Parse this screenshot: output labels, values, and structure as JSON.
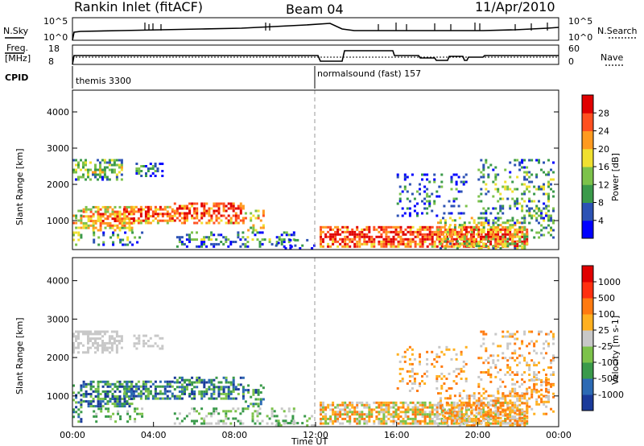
{
  "header": {
    "title": "Rankin Inlet (fitACF)",
    "beam": "Beam 04",
    "date": "11/Apr/2010"
  },
  "params": {
    "nsky_label": "N.Sky",
    "nsky_ticks": [
      "10^5",
      "10^0"
    ],
    "nsearch_label": "N.Search",
    "nsearch_ticks": [
      "10^5",
      "10^0"
    ],
    "freq_label": "Freq.",
    "freq_unit": "[MHz]",
    "freq_ticks": [
      "18",
      "8"
    ],
    "nave_label": "Nave",
    "nave_ticks": [
      "60",
      "0"
    ],
    "cpid_label": "CPID",
    "cpid_segments": [
      {
        "label": "themis 3300",
        "start_hour": 0
      },
      {
        "label": "normalsound (fast) 157",
        "start_hour": 12
      }
    ]
  },
  "chart_data": [
    {
      "type": "heatmap",
      "name": "power",
      "xlabel": "",
      "ylabel": "Slant Range [km]",
      "xlim": [
        0,
        24
      ],
      "ylim": [
        200,
        4600
      ],
      "yticks": [
        "1000",
        "2000",
        "3000",
        "4000"
      ],
      "colorbar": {
        "label": "Power [dB]",
        "ticks": [
          "28",
          "24",
          "20",
          "16",
          "12",
          "8",
          "4"
        ],
        "range": [
          0,
          30
        ],
        "colors": [
          "#0000ff",
          "#2c52b4",
          "#3a9a4a",
          "#7cc24a",
          "#f0e030",
          "#ff9a20",
          "#ff5020",
          "#e00000"
        ]
      }
    },
    {
      "type": "heatmap",
      "name": "velocity",
      "xlabel": "Time UT",
      "ylabel": "Slant Range [km]",
      "xlim": [
        0,
        24
      ],
      "ylim": [
        200,
        4600
      ],
      "xticks": [
        "00:00",
        "04:00",
        "08:00",
        "12:00",
        "16:00",
        "20:00",
        "00:00"
      ],
      "yticks": [
        "1000",
        "2000",
        "3000",
        "4000"
      ],
      "colorbar": {
        "label": "Velocity [m s-1]",
        "ticks": [
          "1000",
          "500",
          "100",
          "25",
          "-25",
          "-100",
          "-500",
          "-1000"
        ],
        "colors": [
          "#1a3a9a",
          "#2c6ab4",
          "#3a9a4a",
          "#7cc24a",
          "#c8c8c8",
          "#ffb020",
          "#ff7a10",
          "#ff3010",
          "#e00000"
        ]
      }
    }
  ]
}
